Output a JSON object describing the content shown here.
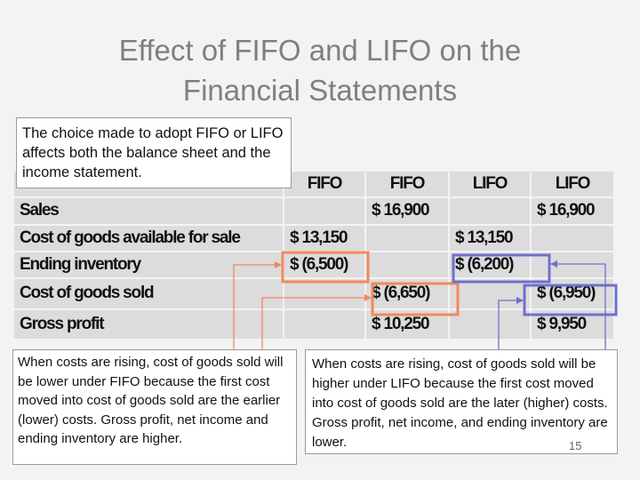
{
  "title": {
    "line1": "Effect of FIFO and LIFO on the",
    "line2": "Financial Statements"
  },
  "intro_text": "The choice made to adopt FIFO or LIFO affects both the balance sheet and the income statement.",
  "table": {
    "headers": [
      "FIFO",
      "FIFO",
      "LIFO",
      "LIFO"
    ],
    "rows": [
      {
        "label": "Sales",
        "c1": "",
        "c2": "$ 16,900",
        "c3": "",
        "c4": "$ 16,900"
      },
      {
        "label": "Cost of goods available for sale",
        "c1": "$ 13,150",
        "c2": "",
        "c3": "$ 13,150",
        "c4": ""
      },
      {
        "label": "Ending inventory",
        "c1": "$ (6,500)",
        "c2": "",
        "c3": "$ (6,200)",
        "c4": ""
      },
      {
        "label": "Cost of goods sold",
        "c1": "",
        "c2": "$ (6,650)",
        "c3": "",
        "c4": "$ (6,950)"
      },
      {
        "label": "Gross profit",
        "c1": "",
        "c2": "$ 10,250",
        "c3": "",
        "c4": "$ 9,950"
      }
    ]
  },
  "fifo_note": "When costs are rising, cost of goods sold will be lower under FIFO because the first cost moved into cost of goods sold are the earlier (lower) costs. Gross profit, net income and ending inventory are higher.",
  "lifo_note": "When costs are rising, cost of goods sold will be higher under LIFO because the first cost moved into cost of goods sold are the later (higher) costs. Gross profit, net income, and ending inventory are lower.",
  "slide_number": "15",
  "colors": {
    "fifo_highlight": "#f08a5d",
    "lifo_highlight": "#6f6fd0",
    "title": "#7f7f7f",
    "table_bg": "#dcdcdc"
  }
}
